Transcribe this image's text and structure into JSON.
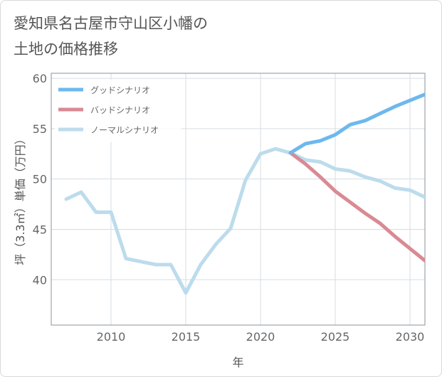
{
  "title_lines": [
    "愛知県名古屋市守山区小幡の",
    "土地の価格推移"
  ],
  "chart_data": {
    "type": "line",
    "xlabel": "年",
    "ylabel": "坪（3.3㎡）単価（万円）",
    "xlim": [
      2006,
      2031
    ],
    "ylim": [
      35.5,
      60.5
    ],
    "xticks": [
      2010,
      2015,
      2020,
      2025,
      2030
    ],
    "yticks": [
      40,
      45,
      50,
      55,
      60
    ],
    "grid": true,
    "legend_position": "top-left",
    "series": [
      {
        "name": "グッドシナリオ",
        "color": "#6db8ee",
        "x": [
          2022,
          2023,
          2024,
          2025,
          2026,
          2027,
          2028,
          2029,
          2030,
          2031
        ],
        "y": [
          52.6,
          53.5,
          53.8,
          54.4,
          55.4,
          55.8,
          56.5,
          57.2,
          57.8,
          58.4
        ]
      },
      {
        "name": "バッドシナリオ",
        "color": "#d98a93",
        "x": [
          2022,
          2023,
          2024,
          2025,
          2026,
          2027,
          2028,
          2029,
          2030,
          2031
        ],
        "y": [
          52.6,
          51.5,
          50.2,
          48.8,
          47.7,
          46.6,
          45.6,
          44.3,
          43.1,
          41.9
        ]
      },
      {
        "name": "ノーマルシナリオ",
        "color": "#bcdcec",
        "x": [
          2007,
          2008,
          2009,
          2010,
          2011,
          2012,
          2013,
          2014,
          2015,
          2016,
          2017,
          2018,
          2019,
          2020,
          2021,
          2022,
          2023,
          2024,
          2025,
          2026,
          2027,
          2028,
          2029,
          2030,
          2031
        ],
        "y": [
          48.0,
          48.7,
          46.7,
          46.7,
          42.1,
          41.8,
          41.5,
          41.5,
          38.7,
          41.5,
          43.5,
          45.1,
          49.9,
          52.5,
          53.0,
          52.6,
          51.9,
          51.7,
          51.0,
          50.8,
          50.2,
          49.8,
          49.1,
          48.9,
          48.2
        ]
      }
    ]
  }
}
